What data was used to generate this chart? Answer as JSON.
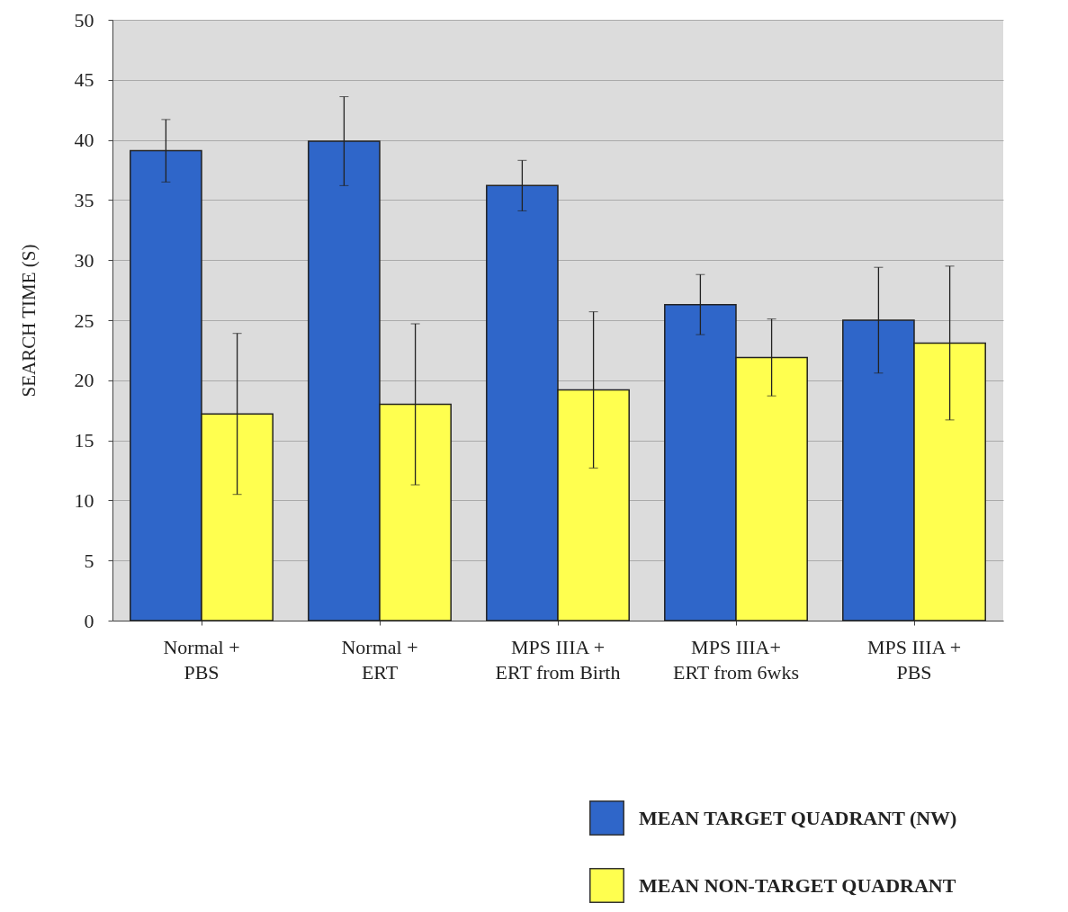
{
  "chart_data": {
    "type": "bar",
    "ylabel": "SEARCH TIME (S)",
    "categories": [
      "Normal +\nPBS",
      "Normal +\nERT",
      "MPS IIIA +\nERT from Birth",
      "MPS IIIA+\nERT from 6wks",
      "MPS IIIA +\nPBS"
    ],
    "series": [
      {
        "name": "MEAN TARGET QUADRANT (NW)",
        "color": "#2f66c9",
        "values": [
          39.1,
          39.9,
          36.2,
          26.3,
          25.0
        ],
        "errors": [
          2.6,
          3.7,
          2.1,
          2.5,
          4.4
        ]
      },
      {
        "name": "MEAN NON-TARGET QUADRANT",
        "color": "#ffff4f",
        "values": [
          17.2,
          18.0,
          19.2,
          21.9,
          23.1
        ],
        "errors": [
          6.7,
          6.7,
          6.5,
          3.2,
          6.4
        ]
      }
    ],
    "ylim": [
      0,
      50
    ],
    "yticks": [
      0,
      5,
      10,
      15,
      20,
      25,
      30,
      35,
      40,
      45,
      50
    ],
    "grid": "y",
    "legend": "bottom right"
  }
}
